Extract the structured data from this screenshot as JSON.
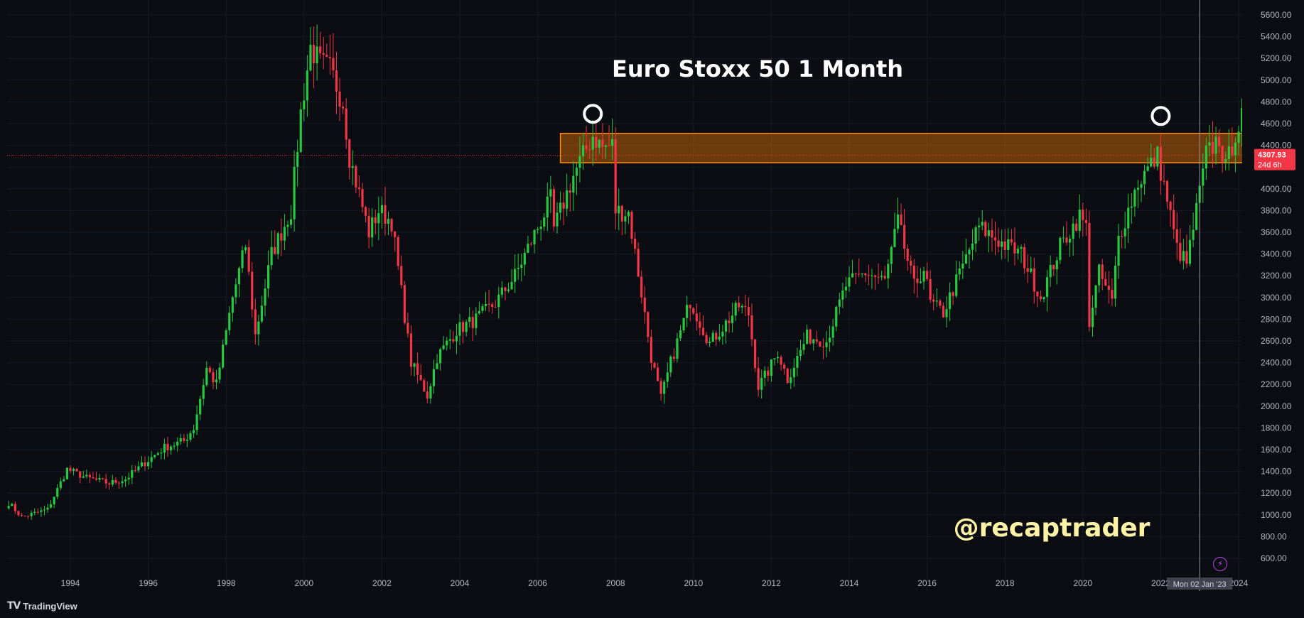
{
  "app": {
    "brand_logo": "TV",
    "brand_name": "TradingView",
    "bolt_icon": "⚡"
  },
  "chart_data": {
    "type": "candlestick",
    "title": "Euro Stoxx 50 1 Month",
    "watermark": "@recaptrader",
    "timeframe": "1M",
    "ylim": [
      600,
      5600
    ],
    "yticks": [
      "600.00",
      "800.00",
      "1000.00",
      "1200.00",
      "1400.00",
      "1600.00",
      "1800.00",
      "2000.00",
      "2200.00",
      "2400.00",
      "2600.00",
      "2800.00",
      "3000.00",
      "3200.00",
      "3400.00",
      "3600.00",
      "3800.00",
      "4000.00",
      "4200.00",
      "4400.00",
      "4600.00",
      "4800.00",
      "5000.00",
      "5200.00",
      "5400.00",
      "5600.00"
    ],
    "xticks": [
      "1994",
      "1996",
      "1998",
      "2000",
      "2002",
      "2004",
      "2006",
      "2008",
      "2010",
      "2012",
      "2014",
      "2016",
      "2018",
      "2020",
      "2022",
      "2024"
    ],
    "last_price": "4307.93",
    "countdown": "24d 6h",
    "crosshair_date": "Mon 02 Jan '23",
    "resistance_zone": {
      "from": "2006-08",
      "to": "2024-03",
      "low": 4240,
      "high": 4510,
      "color": "#f57c00"
    },
    "markers": [
      {
        "shape": "circle",
        "date": "2007-06",
        "price": 4690
      },
      {
        "shape": "circle",
        "date": "2022-01",
        "price": 4670
      }
    ],
    "colors": {
      "up": "#22ab94",
      "up_bright": "#26c940",
      "down": "#f23645",
      "price_line": "#f23645",
      "crosshair": "#9598a1",
      "background": "#0b0d13",
      "grid": "#161a25"
    },
    "price_path": [
      [
        "1992-06",
        1110
      ],
      [
        "1992-10",
        980
      ],
      [
        "1993-06",
        1050
      ],
      [
        "1993-12",
        1420
      ],
      [
        "1994-06",
        1340
      ],
      [
        "1995-01",
        1290
      ],
      [
        "1995-06",
        1330
      ],
      [
        "1995-12",
        1480
      ],
      [
        "1996-06",
        1620
      ],
      [
        "1996-12",
        1680
      ],
      [
        "1997-03",
        1800
      ],
      [
        "1997-07",
        2350
      ],
      [
        "1997-10",
        2200
      ],
      [
        "1998-03",
        3000
      ],
      [
        "1998-07",
        3480
      ],
      [
        "1998-10",
        2650
      ],
      [
        "1999-03",
        3400
      ],
      [
        "1999-06",
        3600
      ],
      [
        "1999-09",
        3800
      ],
      [
        "1999-12",
        4700
      ],
      [
        "2000-03",
        5300
      ],
      [
        "2000-06",
        5150
      ],
      [
        "2000-09",
        5100
      ],
      [
        "2001-01",
        4800
      ],
      [
        "2001-03",
        4300
      ],
      [
        "2001-09",
        3600
      ],
      [
        "2001-12",
        3800
      ],
      [
        "2002-04",
        3700
      ],
      [
        "2002-07",
        3050
      ],
      [
        "2002-10",
        2400
      ],
      [
        "2003-03",
        2100
      ],
      [
        "2003-06",
        2450
      ],
      [
        "2003-12",
        2700
      ],
      [
        "2004-06",
        2800
      ],
      [
        "2004-12",
        2950
      ],
      [
        "2005-06",
        3200
      ],
      [
        "2005-12",
        3580
      ],
      [
        "2006-05",
        3900
      ],
      [
        "2006-06",
        3630
      ],
      [
        "2006-12",
        4120
      ],
      [
        "2007-06",
        4490
      ],
      [
        "2007-09",
        4380
      ],
      [
        "2007-12",
        4400
      ],
      [
        "2008-01",
        3800
      ],
      [
        "2008-05",
        3780
      ],
      [
        "2008-09",
        3040
      ],
      [
        "2008-12",
        2450
      ],
      [
        "2009-03",
        2070
      ],
      [
        "2009-06",
        2400
      ],
      [
        "2009-12",
        2970
      ],
      [
        "2010-06",
        2580
      ],
      [
        "2010-12",
        2800
      ],
      [
        "2011-03",
        2920
      ],
      [
        "2011-06",
        2850
      ],
      [
        "2011-09",
        2180
      ],
      [
        "2011-12",
        2320
      ],
      [
        "2012-03",
        2500
      ],
      [
        "2012-06",
        2250
      ],
      [
        "2012-12",
        2640
      ],
      [
        "2013-06",
        2600
      ],
      [
        "2013-12",
        3110
      ],
      [
        "2014-06",
        3230
      ],
      [
        "2014-12",
        3150
      ],
      [
        "2015-04",
        3700
      ],
      [
        "2015-09",
        3100
      ],
      [
        "2015-12",
        3270
      ],
      [
        "2016-02",
        2950
      ],
      [
        "2016-06",
        2860
      ],
      [
        "2016-12",
        3290
      ],
      [
        "2017-05",
        3650
      ],
      [
        "2017-12",
        3500
      ],
      [
        "2018-06",
        3400
      ],
      [
        "2018-12",
        3000
      ],
      [
        "2019-06",
        3470
      ],
      [
        "2019-12",
        3750
      ],
      [
        "2020-02",
        3640
      ],
      [
        "2020-03",
        2780
      ],
      [
        "2020-06",
        3230
      ],
      [
        "2020-10",
        2960
      ],
      [
        "2020-12",
        3550
      ],
      [
        "2021-06",
        4060
      ],
      [
        "2021-12",
        4300
      ],
      [
        "2022-03",
        3900
      ],
      [
        "2022-06",
        3450
      ],
      [
        "2022-09",
        3310
      ],
      [
        "2022-12",
        3800
      ],
      [
        "2023-03",
        4310
      ],
      [
        "2023-07",
        4470
      ],
      [
        "2023-09",
        4180
      ],
      [
        "2023-12",
        4520
      ],
      [
        "2024-02",
        4640
      ],
      [
        "2024-03",
        4307.93
      ]
    ]
  }
}
